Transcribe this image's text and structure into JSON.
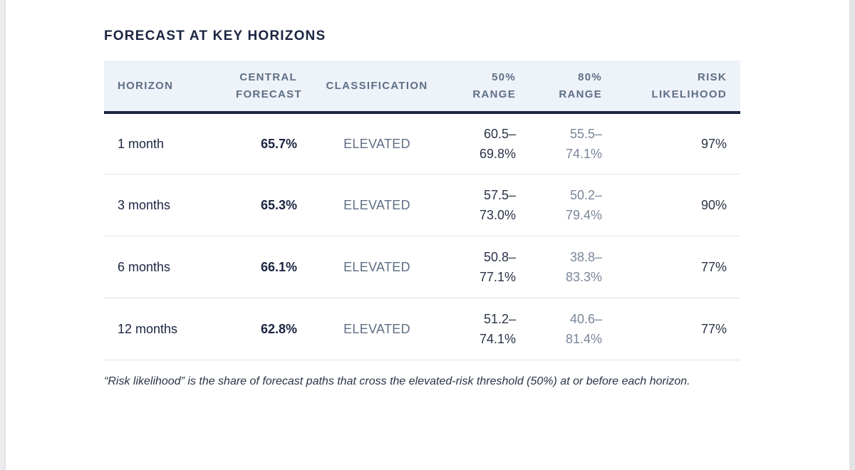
{
  "title": "FORECAST AT KEY HORIZONS",
  "columns": {
    "horizon": "HORIZON",
    "central_forecast_1": "CENTRAL",
    "central_forecast_2": "FORECAST",
    "classification": "CLASSIFICATION",
    "range50_1": "50%",
    "range50_2": "RANGE",
    "range80_1": "80%",
    "range80_2": "RANGE",
    "risk_1": "RISK",
    "risk_2": "LIKELIHOOD"
  },
  "rows": [
    {
      "horizon": "1 month",
      "central_forecast": "65.7%",
      "classification": "ELEVATED",
      "range50_low": "60.5–",
      "range50_high": "69.8%",
      "range80_low": "55.5–",
      "range80_high": "74.1%",
      "risk_likelihood": "97%"
    },
    {
      "horizon": "3 months",
      "central_forecast": "65.3%",
      "classification": "ELEVATED",
      "range50_low": "57.5–",
      "range50_high": "73.0%",
      "range80_low": "50.2–",
      "range80_high": "79.4%",
      "risk_likelihood": "90%"
    },
    {
      "horizon": "6 months",
      "central_forecast": "66.1%",
      "classification": "ELEVATED",
      "range50_low": "50.8–",
      "range50_high": "77.1%",
      "range80_low": "38.8–",
      "range80_high": "83.3%",
      "risk_likelihood": "77%"
    },
    {
      "horizon": "12 months",
      "central_forecast": "62.8%",
      "classification": "ELEVATED",
      "range50_low": "51.2–",
      "range50_high": "74.1%",
      "range80_low": "40.6–",
      "range80_high": "81.4%",
      "risk_likelihood": "77%"
    }
  ],
  "footnote": "“Risk likelihood” is the share of forecast paths that cross the elevated-risk threshold (50%) at or before each horizon."
}
